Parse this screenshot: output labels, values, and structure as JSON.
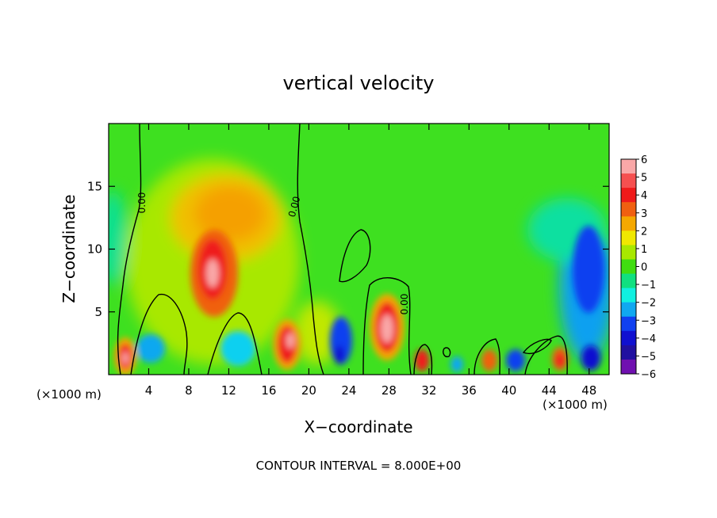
{
  "chart_data": {
    "type": "heatmap",
    "title": "vertical velocity",
    "xlabel": "X−coordinate",
    "ylabel": "Z−coordinate",
    "x_unit_left": "(×1000 m)",
    "x_unit_right": "(×1000 m)",
    "xlim": [
      0,
      50
    ],
    "ylim": [
      0,
      20
    ],
    "x_ticks": [
      4,
      8,
      12,
      16,
      20,
      24,
      28,
      32,
      36,
      40,
      44,
      48
    ],
    "y_ticks": [
      5,
      10,
      15
    ],
    "colorbar": {
      "ticks": [
        6,
        5,
        4,
        3,
        2,
        1,
        0,
        -1,
        -2,
        -3,
        -4,
        -5,
        -6
      ],
      "tick_labels": [
        "6",
        "5",
        "4",
        "3",
        "2",
        "1",
        "0",
        "−1",
        "−2",
        "−3",
        "−4",
        "−5",
        "−6"
      ],
      "colors": [
        "#f9a8a8",
        "#f55050",
        "#ef1a1a",
        "#f06010",
        "#f5a800",
        "#f0e800",
        "#a8e800",
        "#40dd10",
        "#10e080",
        "#10f0e0",
        "#10a8f0",
        "#1040f0",
        "#1010d0",
        "#2010a0",
        "#7010b0"
      ]
    },
    "contour_labels": [
      "0.00",
      "0.00",
      "0.00"
    ],
    "contour_interval_text": "CONTOUR INTERVAL =  8.000E+00",
    "features": [
      {
        "x": 10.5,
        "z": 8.0,
        "value": 6
      },
      {
        "x": 13.0,
        "z": 12.5,
        "value": 3
      },
      {
        "x": 2.0,
        "z": 1.5,
        "value": 6
      },
      {
        "x": 18.0,
        "z": 2.8,
        "value": 6
      },
      {
        "x": 28.0,
        "z": 3.8,
        "value": 6
      },
      {
        "x": 31.0,
        "z": 1.2,
        "value": 4
      },
      {
        "x": 38.0,
        "z": 1.3,
        "value": 4
      },
      {
        "x": 45.0,
        "z": 1.4,
        "value": 4
      },
      {
        "x": 22.8,
        "z": 2.5,
        "value": -5
      },
      {
        "x": 40.0,
        "z": 1.3,
        "value": -4
      },
      {
        "x": 47.5,
        "z": 7.5,
        "value": -4
      },
      {
        "x": 47.5,
        "z": 2.0,
        "value": -5
      },
      {
        "x": 6.5,
        "z": 2.0,
        "value": -3
      },
      {
        "x": 13.5,
        "z": 2.0,
        "value": -2
      },
      {
        "x": 1.0,
        "z": 10.0,
        "value": -1
      }
    ]
  }
}
